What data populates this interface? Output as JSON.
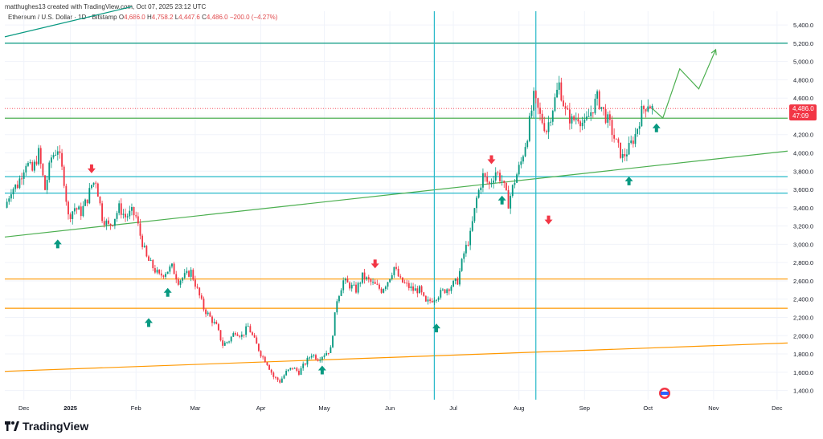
{
  "header": {
    "text": "matthughes13 created with TradingView.com, Oct 07, 2025 23:12 UTC"
  },
  "legend": {
    "symbol": "Ethereum / U.S. Dollar · 1D · Bitstamp",
    "o_label": "O",
    "o": "4,686.0",
    "h_label": "H",
    "h": "4,758.2",
    "l_label": "L",
    "l": "4,447.6",
    "c_label": "C",
    "c": "4,486.0",
    "chg": "−200.0 (−4.27%)"
  },
  "price_badge": {
    "price": "4,486.0",
    "countdown": "47:09",
    "color": "#f23645"
  },
  "logo": {
    "text": "TradingView"
  },
  "colors": {
    "up": "#089981",
    "down": "#f23645",
    "cyan": "#26b8c9",
    "green": "#4caf50",
    "orange": "#ff9800",
    "teal": "#089981",
    "grid": "#f0f3fa"
  },
  "chart_data": {
    "type": "candlestick",
    "title": "Ethereum / U.S. Dollar · 1D · Bitstamp",
    "y_ticks": [
      1400,
      1600,
      1800,
      2000,
      2200,
      2400,
      2600,
      2800,
      3000,
      3200,
      3400,
      3600,
      3800,
      4000,
      4200,
      4400,
      4600,
      4800,
      5000,
      5200,
      5400
    ],
    "y_tick_labels": [
      "1,400.0",
      "1,600.0",
      "1,800.0",
      "2,000.0",
      "2,200.0",
      "2,400.0",
      "2,600.0",
      "2,800.0",
      "3,000.0",
      "3,200.0",
      "3,400.0",
      "3,600.0",
      "3,800.0",
      "4,000.0",
      "4,200.0",
      "4,400.0",
      "4,600.0",
      "4,800.0",
      "5,000.0",
      "5,200.0",
      "5,400.0"
    ],
    "x_ticks": [
      {
        "label": "Dec",
        "day": 9
      },
      {
        "label": "2025",
        "day": 31
      },
      {
        "label": "Feb",
        "day": 62
      },
      {
        "label": "Mar",
        "day": 90
      },
      {
        "label": "Apr",
        "day": 121
      },
      {
        "label": "May",
        "day": 151
      },
      {
        "label": "Jun",
        "day": 182
      },
      {
        "label": "Jul",
        "day": 212
      },
      {
        "label": "Aug",
        "day": 243
      },
      {
        "label": "Sep",
        "day": 274
      },
      {
        "label": "Oct",
        "day": 304
      },
      {
        "label": "Nov",
        "day": 335
      },
      {
        "label": "Dec",
        "day": 365
      }
    ],
    "day_range": [
      0,
      370
    ],
    "price_range": [
      1300,
      5550
    ],
    "anchors": [
      [
        0,
        3400
      ],
      [
        3,
        3600
      ],
      [
        6,
        3650
      ],
      [
        10,
        3900
      ],
      [
        13,
        3800
      ],
      [
        16,
        4000
      ],
      [
        19,
        3600
      ],
      [
        22,
        3950
      ],
      [
        25,
        4050
      ],
      [
        28,
        3700
      ],
      [
        30,
        3300
      ],
      [
        33,
        3400
      ],
      [
        36,
        3350
      ],
      [
        39,
        3500
      ],
      [
        41,
        3650
      ],
      [
        43,
        3700
      ],
      [
        46,
        3300
      ],
      [
        49,
        3200
      ],
      [
        51,
        3250
      ],
      [
        54,
        3400
      ],
      [
        57,
        3300
      ],
      [
        60,
        3350
      ],
      [
        62,
        3300
      ],
      [
        64,
        3100
      ],
      [
        67,
        2850
      ],
      [
        70,
        2750
      ],
      [
        73,
        2650
      ],
      [
        76,
        2700
      ],
      [
        79,
        2750
      ],
      [
        82,
        2600
      ],
      [
        85,
        2650
      ],
      [
        88,
        2700
      ],
      [
        91,
        2500
      ],
      [
        94,
        2300
      ],
      [
        97,
        2200
      ],
      [
        100,
        2100
      ],
      [
        103,
        1900
      ],
      [
        106,
        1950
      ],
      [
        109,
        2050
      ],
      [
        112,
        2000
      ],
      [
        115,
        2100
      ],
      [
        118,
        1950
      ],
      [
        121,
        1800
      ],
      [
        124,
        1700
      ],
      [
        127,
        1550
      ],
      [
        130,
        1500
      ],
      [
        133,
        1600
      ],
      [
        136,
        1650
      ],
      [
        139,
        1600
      ],
      [
        142,
        1700
      ],
      [
        145,
        1800
      ],
      [
        148,
        1750
      ],
      [
        151,
        1800
      ],
      [
        154,
        1850
      ],
      [
        157,
        2400
      ],
      [
        160,
        2600
      ],
      [
        163,
        2550
      ],
      [
        166,
        2500
      ],
      [
        169,
        2650
      ],
      [
        172,
        2600
      ],
      [
        175,
        2550
      ],
      [
        178,
        2500
      ],
      [
        181,
        2600
      ],
      [
        184,
        2750
      ],
      [
        187,
        2600
      ],
      [
        190,
        2550
      ],
      [
        193,
        2500
      ],
      [
        196,
        2500
      ],
      [
        199,
        2350
      ],
      [
        202,
        2400
      ],
      [
        205,
        2450
      ],
      [
        208,
        2500
      ],
      [
        211,
        2550
      ],
      [
        214,
        2600
      ],
      [
        217,
        2900
      ],
      [
        220,
        3100
      ],
      [
        223,
        3500
      ],
      [
        226,
        3750
      ],
      [
        229,
        3650
      ],
      [
        232,
        3800
      ],
      [
        235,
        3700
      ],
      [
        238,
        3450
      ],
      [
        241,
        3700
      ],
      [
        244,
        3900
      ],
      [
        247,
        4200
      ],
      [
        250,
        4600
      ],
      [
        253,
        4400
      ],
      [
        256,
        4250
      ],
      [
        259,
        4500
      ],
      [
        262,
        4750
      ],
      [
        265,
        4450
      ],
      [
        268,
        4350
      ],
      [
        271,
        4400
      ],
      [
        274,
        4300
      ],
      [
        277,
        4450
      ],
      [
        280,
        4600
      ],
      [
        283,
        4450
      ],
      [
        286,
        4300
      ],
      [
        289,
        4100
      ],
      [
        292,
        3950
      ],
      [
        295,
        4050
      ],
      [
        298,
        4200
      ],
      [
        301,
        4450
      ],
      [
        304,
        4550
      ],
      [
        306,
        4486
      ]
    ],
    "projection": [
      [
        306,
        4486
      ],
      [
        311,
        4380
      ],
      [
        319,
        4920
      ],
      [
        328,
        4700
      ],
      [
        336,
        5130
      ]
    ],
    "hlines": [
      {
        "price": 5200,
        "color": "teal"
      },
      {
        "price": 4380,
        "color": "green"
      },
      {
        "price": 3740,
        "color": "cyan"
      },
      {
        "price": 3560,
        "color": "cyan"
      },
      {
        "price": 2620,
        "color": "orange"
      },
      {
        "price": 2300,
        "color": "orange"
      }
    ],
    "trendlines": [
      {
        "p1": [
          0,
          3080
        ],
        "p2": [
          370,
          4020
        ],
        "color": "green"
      },
      {
        "p1": [
          0,
          1610
        ],
        "p2": [
          370,
          1920
        ],
        "color": "orange"
      },
      {
        "p1": [
          0,
          5270
        ],
        "p2": [
          60,
          5600
        ],
        "color": "teal"
      }
    ],
    "vlines": [
      {
        "day": 203,
        "color": "cyan"
      },
      {
        "day": 251,
        "color": "cyan"
      }
    ],
    "current_price": 4486,
    "arrows": [
      {
        "day": 25,
        "price": 3000,
        "dir": "up"
      },
      {
        "day": 41,
        "price": 3830,
        "dir": "down"
      },
      {
        "day": 68,
        "price": 2140,
        "dir": "up"
      },
      {
        "day": 77,
        "price": 2470,
        "dir": "up"
      },
      {
        "day": 150,
        "price": 1620,
        "dir": "up"
      },
      {
        "day": 175,
        "price": 2790,
        "dir": "down"
      },
      {
        "day": 204,
        "price": 2080,
        "dir": "up"
      },
      {
        "day": 230,
        "price": 3930,
        "dir": "down"
      },
      {
        "day": 235,
        "price": 3480,
        "dir": "up"
      },
      {
        "day": 257,
        "price": 3270,
        "dir": "down"
      },
      {
        "day": 295,
        "price": 3690,
        "dir": "up"
      },
      {
        "day": 308,
        "price": 4270,
        "dir": "up"
      }
    ]
  }
}
